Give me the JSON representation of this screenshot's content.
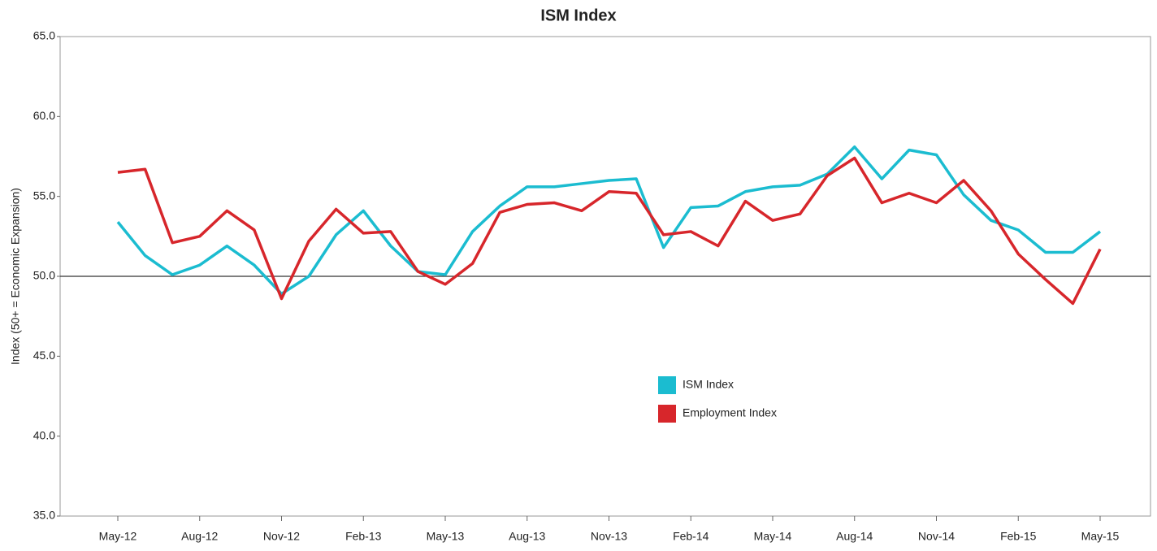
{
  "chart_data": {
    "type": "line",
    "title": "ISM Index",
    "y_label": "Index (50+ = Economic Expansion)",
    "categories": [
      "May-12",
      null,
      null,
      "Aug-12",
      null,
      null,
      "Nov-12",
      null,
      null,
      "Feb-13",
      null,
      null,
      "May-13",
      null,
      null,
      "Aug-13",
      null,
      null,
      "Nov-13",
      null,
      null,
      "Feb-14",
      null,
      null,
      "May-14",
      null,
      null,
      "Aug-14",
      null,
      null,
      "Nov-14",
      null,
      null,
      "Feb-15",
      null,
      null,
      "May-15"
    ],
    "series": [
      {
        "name": "ISM Index",
        "color": "#1bbcd0",
        "values": [
          53.4,
          51.3,
          50.1,
          50.7,
          51.9,
          50.7,
          48.9,
          50.0,
          52.6,
          54.1,
          51.9,
          50.3,
          50.1,
          52.8,
          54.4,
          55.6,
          55.6,
          55.8,
          56.0,
          56.1,
          51.8,
          54.3,
          54.4,
          55.3,
          55.6,
          55.7,
          56.4,
          58.1,
          56.1,
          57.9,
          57.6,
          55.1,
          53.5,
          52.9,
          51.5,
          51.5,
          52.8
        ]
      },
      {
        "name": "Employment Index",
        "color": "#d7262b",
        "values": [
          56.5,
          56.7,
          52.1,
          52.5,
          54.1,
          52.9,
          48.6,
          52.2,
          54.2,
          52.7,
          52.8,
          50.3,
          49.5,
          50.8,
          54.0,
          54.5,
          54.6,
          54.1,
          55.3,
          55.2,
          52.6,
          52.8,
          51.9,
          54.7,
          53.5,
          53.9,
          56.3,
          57.4,
          54.6,
          55.2,
          54.6,
          56.0,
          54.1,
          51.4,
          49.8,
          48.3,
          51.7
        ]
      }
    ],
    "ylim": [
      35,
      65
    ],
    "yticks": [
      {
        "value": 35,
        "label": "35.0"
      },
      {
        "value": 40,
        "label": "40.0"
      },
      {
        "value": 45,
        "label": "45.0"
      },
      {
        "value": 50,
        "label": "50.0"
      },
      {
        "value": 55,
        "label": "55.0"
      },
      {
        "value": 60,
        "label": "60.0"
      },
      {
        "value": 65,
        "label": "65.0"
      }
    ],
    "reference_line": 50,
    "grid": false
  }
}
